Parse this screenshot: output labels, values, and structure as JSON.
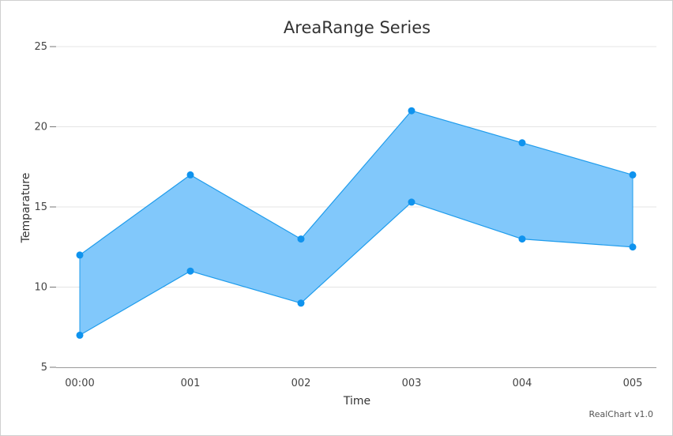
{
  "chart_data": {
    "type": "area",
    "subtype": "arearange",
    "title": "AreaRange Series",
    "xlabel": "Time",
    "ylabel": "Temparature",
    "categories": [
      "00:00",
      "001",
      "002",
      "003",
      "004",
      "005"
    ],
    "ylim": [
      5,
      25
    ],
    "yticks": [
      "5",
      "10",
      "15",
      "20",
      "25"
    ],
    "series": [
      {
        "low": [
          7,
          11,
          9,
          15.3,
          13,
          12.5
        ],
        "high": [
          12,
          17,
          13,
          21,
          19,
          17
        ]
      }
    ],
    "grid": true,
    "legend": "none"
  },
  "colors": {
    "fill": "#81c8fb",
    "line": "#1f9cec",
    "marker": "#0f93ee"
  },
  "credits": "RealChart v1.0"
}
